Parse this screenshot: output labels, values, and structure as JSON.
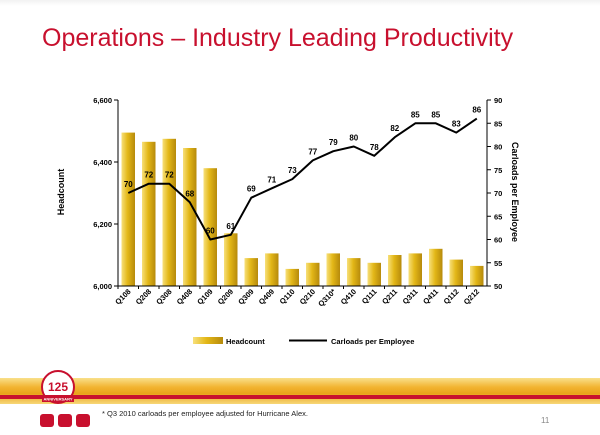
{
  "slide": {
    "title": "Operations – Industry Leading Productivity",
    "footnote": "* Q3 2010 carloads per employee adjusted for Hurricane Alex.",
    "page_number": "11",
    "badge_text": "125",
    "badge_sub": "ANNIVERSARY"
  },
  "colors": {
    "title": "#c8102e",
    "bar_light": "#f7e07a",
    "bar_mid": "#e3b717",
    "bar_dark": "#b68a0c",
    "line": "#000000",
    "brand_red": "#c8102e",
    "band_gold": "#f2b431"
  },
  "chart_data": {
    "type": "bar",
    "categories": [
      "Q108",
      "Q208",
      "Q308",
      "Q408",
      "Q109",
      "Q209",
      "Q309",
      "Q409",
      "Q110",
      "Q210",
      "Q310*",
      "Q410",
      "Q111",
      "Q211",
      "Q311",
      "Q411",
      "Q112",
      "Q212"
    ],
    "series": [
      {
        "name": "Headcount",
        "type": "bar",
        "axis": "left",
        "values": [
          6495,
          6465,
          6475,
          6445,
          6380,
          6170,
          6090,
          6105,
          6055,
          6075,
          6105,
          6090,
          6075,
          6100,
          6105,
          6120,
          6085,
          6065
        ]
      },
      {
        "name": "Carloads per Employee",
        "type": "line",
        "axis": "right",
        "values": [
          70,
          72,
          72,
          68,
          60,
          61,
          69,
          71,
          73,
          77,
          79,
          80,
          78,
          82,
          85,
          85,
          83,
          86
        ]
      }
    ],
    "ylabel": "Headcount",
    "y2label": "Carloads per Employee",
    "ylim": [
      6000,
      6600
    ],
    "y2lim": [
      50,
      90
    ],
    "yticks": [
      "6,000",
      "6,200",
      "6,400",
      "6,600"
    ],
    "yticks_values": [
      6000,
      6200,
      6400,
      6600
    ],
    "y2ticks": [
      50,
      55,
      60,
      65,
      70,
      75,
      80,
      85,
      90
    ],
    "line_labels": [
      "70",
      "72",
      "72",
      "68",
      "60",
      "61",
      "69",
      "71",
      "73",
      "77",
      "79",
      "80",
      "78",
      "82",
      "85",
      "85",
      "83",
      "86"
    ],
    "legend_position": "bottom",
    "grid": false
  }
}
